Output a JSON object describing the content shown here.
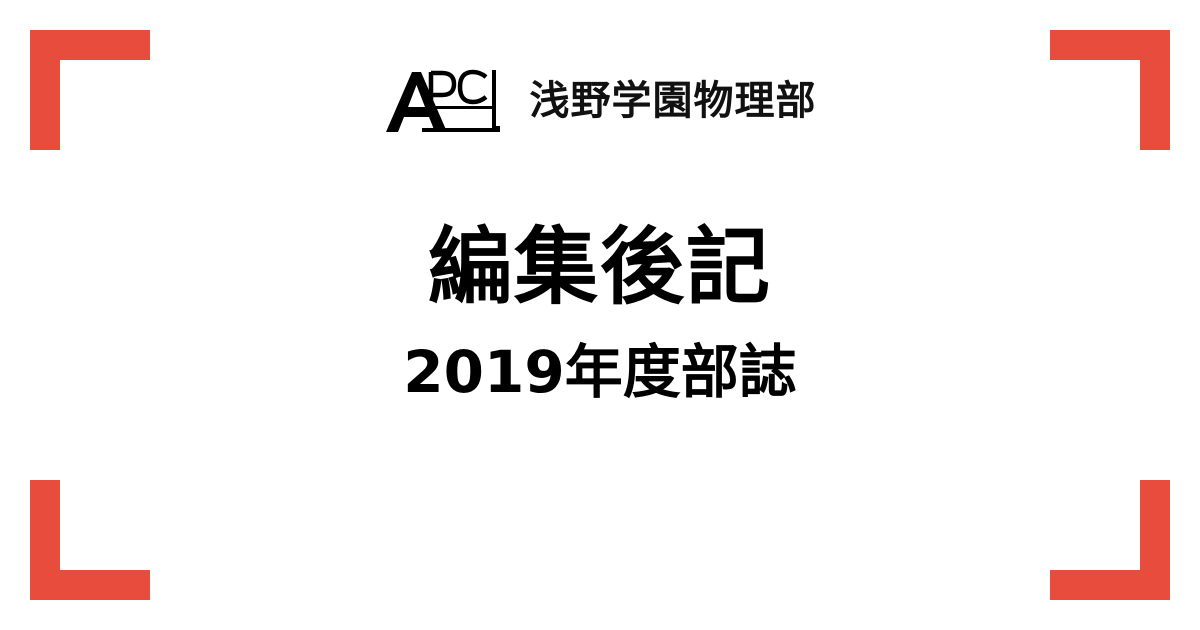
{
  "header": {
    "logo_text": "APC",
    "club_name": "浅野学園物理部"
  },
  "main": {
    "title": "編集後記",
    "subtitle": "2019年度部誌"
  },
  "colors": {
    "accent": "#e84c3d",
    "text": "#000000",
    "background": "#ffffff"
  }
}
